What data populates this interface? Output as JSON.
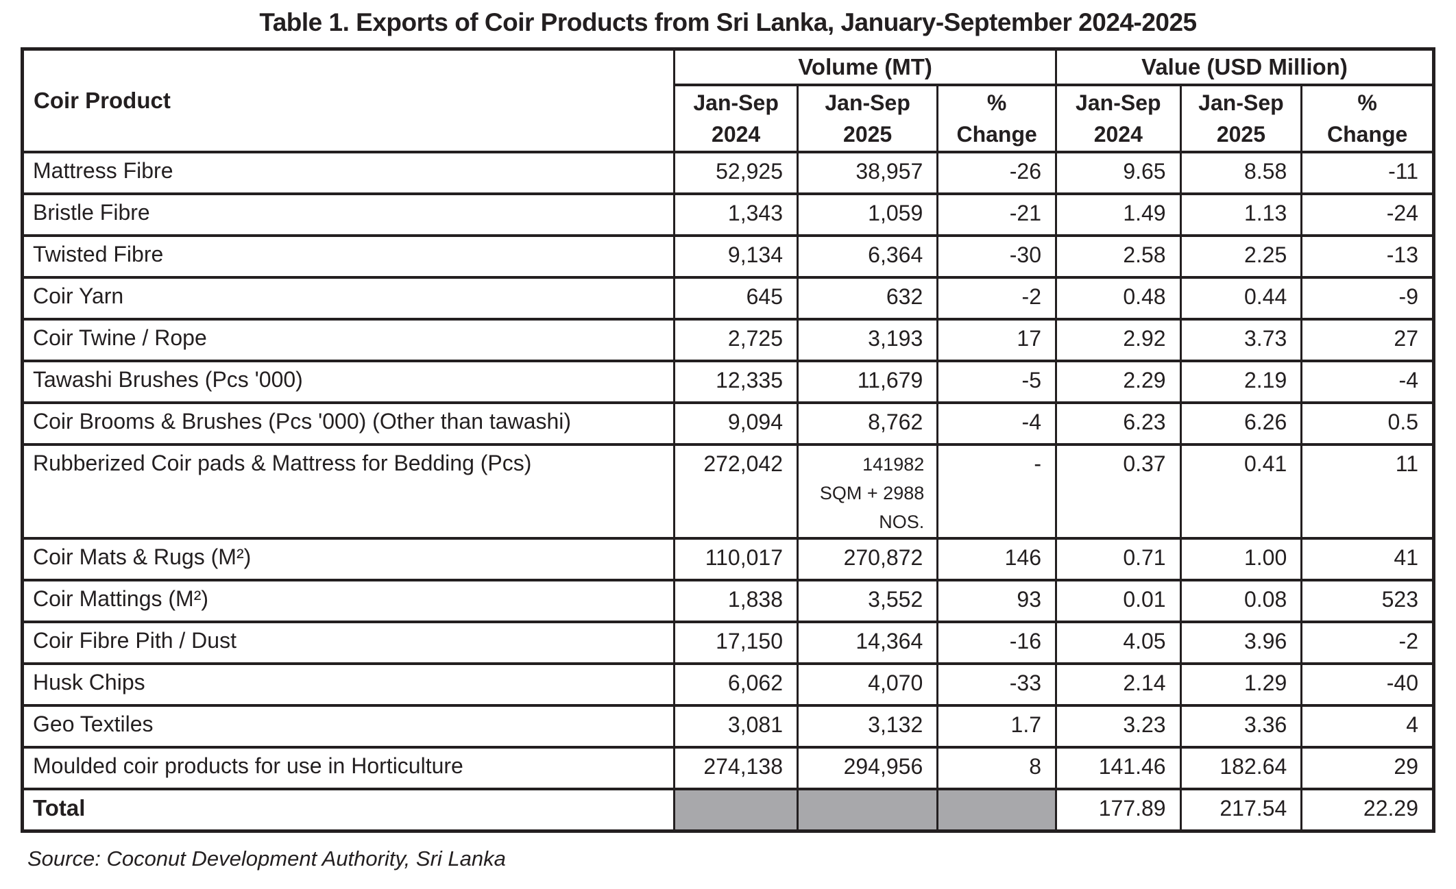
{
  "title": "Table 1. Exports of Coir Products from Sri Lanka, January-September 2024-2025",
  "source": "Source: Coconut Development Authority, Sri Lanka",
  "colors": {
    "border_ink": "#231f20",
    "total_shaded_cell": "#a8a8ab"
  },
  "table": {
    "product_header": "Coir Product",
    "group_headers": [
      {
        "label": "Volume (MT)"
      },
      {
        "label": "Value (USD Million)"
      }
    ],
    "sub_headers": [
      "Jan-Sep\n2024",
      "Jan-Sep\n2025",
      "%\nChange",
      "Jan-Sep\n2024",
      "Jan-Sep\n2025",
      "%\nChange"
    ],
    "rows": [
      {
        "product": "Mattress Fibre",
        "vol_2024": "52,925",
        "vol_2025": "38,957",
        "vol_change": "-26",
        "val_2024": "9.65",
        "val_2025": "8.58",
        "val_change": "-11"
      },
      {
        "product": "Bristle Fibre",
        "vol_2024": "1,343",
        "vol_2025": "1,059",
        "vol_change": "-21",
        "val_2024": "1.49",
        "val_2025": "1.13",
        "val_change": "-24"
      },
      {
        "product": "Twisted Fibre",
        "vol_2024": "9,134",
        "vol_2025": "6,364",
        "vol_change": "-30",
        "val_2024": "2.58",
        "val_2025": "2.25",
        "val_change": "-13"
      },
      {
        "product": "Coir Yarn",
        "vol_2024": "645",
        "vol_2025": "632",
        "vol_change": "-2",
        "val_2024": "0.48",
        "val_2025": "0.44",
        "val_change": "-9"
      },
      {
        "product": "Coir Twine / Rope",
        "vol_2024": "2,725",
        "vol_2025": "3,193",
        "vol_change": "17",
        "val_2024": "2.92",
        "val_2025": "3.73",
        "val_change": "27"
      },
      {
        "product": "Tawashi Brushes (Pcs '000)",
        "vol_2024": "12,335",
        "vol_2025": "11,679",
        "vol_change": "-5",
        "val_2024": "2.29",
        "val_2025": "2.19",
        "val_change": "-4"
      },
      {
        "product": "Coir Brooms & Brushes (Pcs '000) (Other than tawashi)",
        "vol_2024": "9,094",
        "vol_2025": "8,762",
        "vol_change": "-4",
        "val_2024": "6.23",
        "val_2025": "6.26",
        "val_change": "0.5"
      },
      {
        "product": "Rubberized Coir pads & Mattress for Bedding (Pcs)",
        "vol_2024": "272,042",
        "vol_2025": "141982\nSQM + 2988\nNOS.",
        "vol_change": "-",
        "val_2024": "0.37",
        "val_2025": "0.41",
        "val_change": "11"
      },
      {
        "product": "Coir Mats & Rugs (M²)",
        "vol_2024": "110,017",
        "vol_2025": "270,872",
        "vol_change": "146",
        "val_2024": "0.71",
        "val_2025": "1.00",
        "val_change": "41"
      },
      {
        "product": "Coir Mattings (M²)",
        "vol_2024": "1,838",
        "vol_2025": "3,552",
        "vol_change": "93",
        "val_2024": "0.01",
        "val_2025": "0.08",
        "val_change": "523"
      },
      {
        "product": "Coir Fibre Pith / Dust",
        "vol_2024": "17,150",
        "vol_2025": "14,364",
        "vol_change": "-16",
        "val_2024": "4.05",
        "val_2025": "3.96",
        "val_change": "-2"
      },
      {
        "product": "Husk Chips",
        "vol_2024": "6,062",
        "vol_2025": "4,070",
        "vol_change": "-33",
        "val_2024": "2.14",
        "val_2025": "1.29",
        "val_change": "-40"
      },
      {
        "product": "Geo Textiles",
        "vol_2024": "3,081",
        "vol_2025": "3,132",
        "vol_change": "1.7",
        "val_2024": "3.23",
        "val_2025": "3.36",
        "val_change": "4"
      },
      {
        "product": "Moulded coir products for use in Horticulture",
        "vol_2024": "274,138",
        "vol_2025": "294,956",
        "vol_change": "8",
        "val_2024": "141.46",
        "val_2025": "182.64",
        "val_change": "29"
      }
    ],
    "total": {
      "label": "Total",
      "val_2024": "177.89",
      "val_2025": "217.54",
      "val_change": "22.29"
    }
  }
}
